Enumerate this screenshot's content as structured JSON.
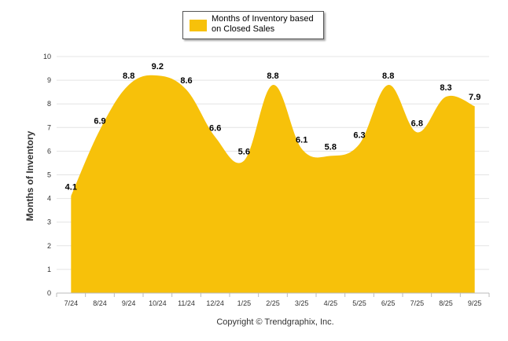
{
  "chart_data": {
    "type": "area",
    "title": "",
    "xlabel": "",
    "ylabel": "Months of Inventory",
    "ylim": [
      0,
      10
    ],
    "yticks": [
      "0",
      "1",
      "2",
      "3",
      "4",
      "5",
      "6",
      "7",
      "8",
      "9",
      "10"
    ],
    "categories": [
      "7/24",
      "8/24",
      "9/24",
      "10/24",
      "11/24",
      "12/24",
      "1/25",
      "2/25",
      "3/25",
      "4/25",
      "5/25",
      "6/25",
      "7/25",
      "8/25",
      "9/25"
    ],
    "series": [
      {
        "name": "Months of Inventory based on Closed Sales",
        "values": [
          4.1,
          6.9,
          8.8,
          9.2,
          8.6,
          6.6,
          5.6,
          8.8,
          6.1,
          5.8,
          6.3,
          8.8,
          6.8,
          8.3,
          7.9
        ],
        "labels": [
          "4.1",
          "6.9",
          "8.8",
          "9.2",
          "8.6",
          "6.6",
          "5.6",
          "8.8",
          "6.1",
          "5.8",
          "6.3",
          "8.8",
          "6.8",
          "8.3",
          "7.9"
        ]
      }
    ],
    "legend": {
      "position": "top-center",
      "label": "Months of Inventory based on Closed Sales"
    },
    "grid": true
  },
  "colors": {
    "fill": "#f7c10a",
    "grid": "#e4e4e4",
    "axis": "#bbbbbb"
  },
  "footer": {
    "copyright": "Copyright © Trendgraphix, Inc."
  }
}
